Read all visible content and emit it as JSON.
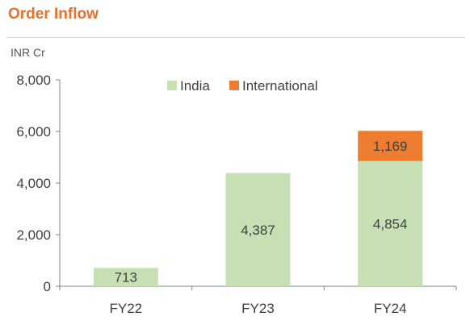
{
  "header": {
    "title": "Order Inflow",
    "unit": "INR Cr"
  },
  "colors": {
    "india": "#c6e0b4",
    "international": "#ed7d31",
    "title": "#e8702a",
    "axis": "#808080",
    "text": "#404040"
  },
  "chart_data": {
    "type": "bar",
    "stacked": true,
    "categories": [
      "FY22",
      "FY23",
      "FY24"
    ],
    "series": [
      {
        "name": "India",
        "values": [
          713,
          4387,
          4854
        ]
      },
      {
        "name": "International",
        "values": [
          0,
          0,
          1169
        ]
      }
    ],
    "data_labels": [
      [
        "713",
        "4,387",
        "4,854"
      ],
      [
        "",
        "",
        "1,169"
      ]
    ],
    "ylabel": "INR Cr",
    "ylim": [
      0,
      8000
    ],
    "yticks": [
      0,
      2000,
      4000,
      6000,
      8000
    ],
    "ytick_labels": [
      "0",
      "2,000",
      "4,000",
      "6,000",
      "8,000"
    ],
    "legend_position": "top-center",
    "grid": false
  }
}
